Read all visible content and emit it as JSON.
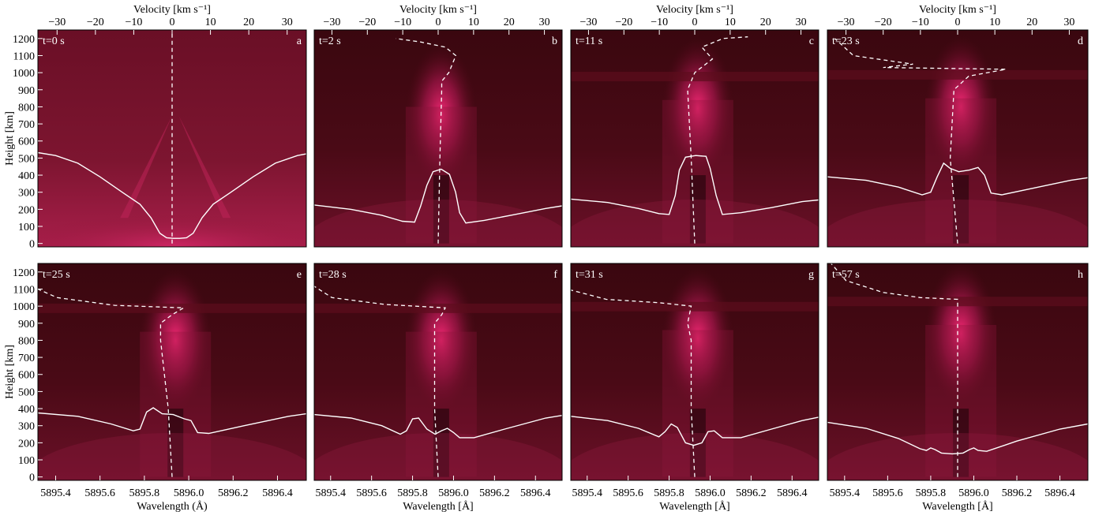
{
  "chart_data": {
    "type": "heatmap",
    "top_axis_label": "Velocity [km s⁻¹]",
    "left_axis_label": "Height [km]",
    "bottom_axis_labels": [
      "Wavelength (Å)",
      "Wavelength [Å]",
      "Wavelength [Å]",
      "Wavelength [Å]"
    ],
    "velocity_ticks": [
      -30,
      -20,
      -10,
      0,
      10,
      20,
      30
    ],
    "velocity_range": [
      -35,
      35
    ],
    "wavelength_ticks": [
      "5895.4",
      "5895.6",
      "5895.8",
      "5896.0",
      "5896.2",
      "5896.4"
    ],
    "wavelength_range": [
      5895.32,
      5896.53
    ],
    "height_ticks": [
      0,
      100,
      200,
      300,
      400,
      500,
      600,
      700,
      800,
      900,
      1000,
      1100,
      1200
    ],
    "height_range": [
      -20,
      1250
    ],
    "colors": {
      "map_dark": "#2a0408",
      "map_bright": "#ff2a7a",
      "overlay": "#ffffff"
    },
    "panels": [
      {
        "time_label": "t=0 s",
        "letter": "a",
        "profile": [
          [
            5895.32,
            532
          ],
          [
            5895.4,
            515
          ],
          [
            5895.5,
            470
          ],
          [
            5895.6,
            390
          ],
          [
            5895.7,
            300
          ],
          [
            5895.78,
            230
          ],
          [
            5895.83,
            150
          ],
          [
            5895.87,
            60
          ],
          [
            5895.9,
            33
          ],
          [
            5895.93,
            30
          ],
          [
            5895.96,
            30
          ],
          [
            5895.99,
            33
          ],
          [
            5896.02,
            60
          ],
          [
            5896.06,
            150
          ],
          [
            5896.11,
            230
          ],
          [
            5896.19,
            300
          ],
          [
            5896.29,
            390
          ],
          [
            5896.39,
            470
          ],
          [
            5896.49,
            515
          ],
          [
            5896.53,
            525
          ]
        ],
        "velocity": [
          [
            0,
            0
          ],
          [
            0,
            1250
          ]
        ]
      },
      {
        "time_label": "t=2 s",
        "letter": "b",
        "profile": [
          [
            5895.32,
            225
          ],
          [
            5895.5,
            200
          ],
          [
            5895.65,
            165
          ],
          [
            5895.75,
            130
          ],
          [
            5895.81,
            125
          ],
          [
            5895.84,
            220
          ],
          [
            5895.87,
            340
          ],
          [
            5895.9,
            420
          ],
          [
            5895.94,
            435
          ],
          [
            5895.98,
            405
          ],
          [
            5896.01,
            300
          ],
          [
            5896.03,
            180
          ],
          [
            5896.06,
            120
          ],
          [
            5896.15,
            135
          ],
          [
            5896.3,
            170
          ],
          [
            5896.45,
            205
          ],
          [
            5896.53,
            220
          ]
        ],
        "velocity": [
          [
            0,
            0
          ],
          [
            0.5,
            500
          ],
          [
            1,
            900
          ],
          [
            1,
            950
          ],
          [
            3,
            1000
          ],
          [
            5,
            1100
          ],
          [
            2,
            1150
          ],
          [
            -5,
            1180
          ],
          [
            -12,
            1200
          ]
        ]
      },
      {
        "time_label": "t=11 s",
        "letter": "c",
        "profile": [
          [
            5895.32,
            260
          ],
          [
            5895.5,
            240
          ],
          [
            5895.65,
            205
          ],
          [
            5895.75,
            175
          ],
          [
            5895.8,
            170
          ],
          [
            5895.83,
            280
          ],
          [
            5895.85,
            430
          ],
          [
            5895.88,
            505
          ],
          [
            5895.93,
            515
          ],
          [
            5895.98,
            510
          ],
          [
            5896.0,
            440
          ],
          [
            5896.03,
            280
          ],
          [
            5896.06,
            170
          ],
          [
            5896.15,
            180
          ],
          [
            5896.3,
            210
          ],
          [
            5896.45,
            245
          ],
          [
            5896.53,
            255
          ]
        ],
        "velocity": [
          [
            0,
            0
          ],
          [
            -1,
            500
          ],
          [
            -2,
            900
          ],
          [
            0,
            1000
          ],
          [
            5,
            1080
          ],
          [
            2,
            1150
          ],
          [
            8,
            1200
          ],
          [
            15,
            1210
          ]
        ]
      },
      {
        "time_label": "t=23 s",
        "letter": "d",
        "profile": [
          [
            5895.32,
            390
          ],
          [
            5895.5,
            370
          ],
          [
            5895.65,
            330
          ],
          [
            5895.76,
            285
          ],
          [
            5895.8,
            300
          ],
          [
            5895.83,
            390
          ],
          [
            5895.86,
            470
          ],
          [
            5895.89,
            440
          ],
          [
            5895.93,
            420
          ],
          [
            5895.98,
            430
          ],
          [
            5896.02,
            445
          ],
          [
            5896.05,
            400
          ],
          [
            5896.08,
            295
          ],
          [
            5896.13,
            285
          ],
          [
            5896.3,
            330
          ],
          [
            5896.45,
            370
          ],
          [
            5896.53,
            385
          ]
        ],
        "velocity": [
          [
            0,
            0
          ],
          [
            -2,
            500
          ],
          [
            -1,
            900
          ],
          [
            3,
            980
          ],
          [
            13,
            1020
          ],
          [
            -20,
            1030
          ],
          [
            -12,
            1050
          ],
          [
            -28,
            1100
          ],
          [
            -33,
            1200
          ]
        ]
      },
      {
        "time_label": "t=25 s",
        "letter": "e",
        "profile": [
          [
            5895.32,
            375
          ],
          [
            5895.5,
            355
          ],
          [
            5895.65,
            310
          ],
          [
            5895.75,
            270
          ],
          [
            5895.78,
            280
          ],
          [
            5895.81,
            380
          ],
          [
            5895.84,
            405
          ],
          [
            5895.88,
            370
          ],
          [
            5895.93,
            365
          ],
          [
            5895.98,
            340
          ],
          [
            5896.01,
            330
          ],
          [
            5896.04,
            260
          ],
          [
            5896.09,
            255
          ],
          [
            5896.25,
            300
          ],
          [
            5896.45,
            355
          ],
          [
            5896.53,
            370
          ]
        ],
        "velocity": [
          [
            0,
            0
          ],
          [
            -1,
            400
          ],
          [
            -3,
            800
          ],
          [
            -3,
            900
          ],
          [
            0,
            950
          ],
          [
            3,
            990
          ],
          [
            -15,
            1005
          ],
          [
            -30,
            1050
          ],
          [
            -36,
            1110
          ]
        ]
      },
      {
        "time_label": "t=28 s",
        "letter": "f",
        "profile": [
          [
            5895.32,
            365
          ],
          [
            5895.5,
            345
          ],
          [
            5895.65,
            300
          ],
          [
            5895.74,
            250
          ],
          [
            5895.77,
            270
          ],
          [
            5895.8,
            340
          ],
          [
            5895.83,
            345
          ],
          [
            5895.87,
            280
          ],
          [
            5895.91,
            250
          ],
          [
            5895.94,
            270
          ],
          [
            5895.97,
            285
          ],
          [
            5896.0,
            260
          ],
          [
            5896.03,
            230
          ],
          [
            5896.1,
            230
          ],
          [
            5896.25,
            280
          ],
          [
            5896.45,
            345
          ],
          [
            5896.53,
            360
          ]
        ],
        "velocity": [
          [
            0,
            0
          ],
          [
            -1,
            400
          ],
          [
            -1,
            800
          ],
          [
            -1,
            900
          ],
          [
            1,
            950
          ],
          [
            2,
            990
          ],
          [
            -15,
            1010
          ],
          [
            -30,
            1050
          ],
          [
            -36,
            1130
          ]
        ]
      },
      {
        "time_label": "t=31 s",
        "letter": "g",
        "profile": [
          [
            5895.32,
            355
          ],
          [
            5895.5,
            330
          ],
          [
            5895.65,
            285
          ],
          [
            5895.75,
            235
          ],
          [
            5895.78,
            265
          ],
          [
            5895.81,
            310
          ],
          [
            5895.84,
            290
          ],
          [
            5895.88,
            200
          ],
          [
            5895.92,
            185
          ],
          [
            5895.96,
            200
          ],
          [
            5895.99,
            265
          ],
          [
            5896.02,
            270
          ],
          [
            5896.06,
            230
          ],
          [
            5896.15,
            230
          ],
          [
            5896.3,
            280
          ],
          [
            5896.45,
            330
          ],
          [
            5896.53,
            350
          ]
        ],
        "velocity": [
          [
            0,
            0
          ],
          [
            -1,
            400
          ],
          [
            -1,
            800
          ],
          [
            -2,
            900
          ],
          [
            -1,
            1000
          ],
          [
            -10,
            1020
          ],
          [
            -25,
            1040
          ],
          [
            -36,
            1100
          ]
        ]
      },
      {
        "time_label": "t=57 s",
        "letter": "h",
        "profile": [
          [
            5895.32,
            320
          ],
          [
            5895.5,
            285
          ],
          [
            5895.65,
            225
          ],
          [
            5895.75,
            165
          ],
          [
            5895.78,
            155
          ],
          [
            5895.8,
            170
          ],
          [
            5895.82,
            160
          ],
          [
            5895.85,
            140
          ],
          [
            5895.9,
            135
          ],
          [
            5895.95,
            140
          ],
          [
            5895.98,
            160
          ],
          [
            5896.0,
            170
          ],
          [
            5896.02,
            155
          ],
          [
            5896.06,
            150
          ],
          [
            5896.2,
            210
          ],
          [
            5896.4,
            280
          ],
          [
            5896.53,
            310
          ]
        ],
        "velocity": [
          [
            0,
            0
          ],
          [
            0,
            600
          ],
          [
            0,
            900
          ],
          [
            0,
            1040
          ],
          [
            -10,
            1050
          ],
          [
            -20,
            1080
          ],
          [
            -30,
            1150
          ],
          [
            -34,
            1250
          ]
        ]
      }
    ]
  }
}
